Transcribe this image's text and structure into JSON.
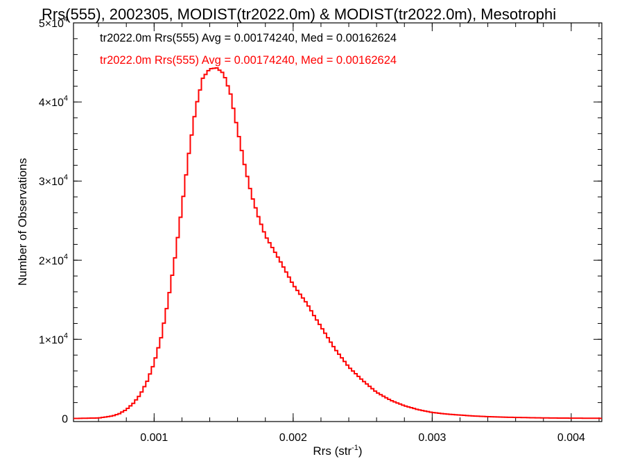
{
  "chart_data": {
    "type": "line",
    "title": "Rrs(555), 2002305, MODIST(tr2022.0m) & MODIST(tr2022.0m), Mesotrophi",
    "xlabel": {
      "base": "Rrs (str",
      "sup": "-1",
      "close": ")"
    },
    "ylabel": "Number of Observations",
    "xlim": [
      0.00042,
      0.00422
    ],
    "ylim": [
      -400,
      50000
    ],
    "grid": false,
    "step": true,
    "x_ticks": [
      {
        "value": 0.001,
        "label": "0.001"
      },
      {
        "value": 0.002,
        "label": "0.002"
      },
      {
        "value": 0.003,
        "label": "0.003"
      },
      {
        "value": 0.004,
        "label": "0.004"
      }
    ],
    "y_ticks": [
      {
        "value": 0,
        "label": "0"
      },
      {
        "value": 10000,
        "mant": "1×10",
        "exp": "4"
      },
      {
        "value": 20000,
        "mant": "2×10",
        "exp": "4"
      },
      {
        "value": 30000,
        "mant": "3×10",
        "exp": "4"
      },
      {
        "value": 40000,
        "mant": "4×10",
        "exp": "4"
      },
      {
        "value": 50000,
        "mant": "5×10",
        "exp": "4"
      }
    ],
    "annotations": [
      {
        "text": "tr2022.0m Rrs(555) Avg = 0.00174240, Med = 0.00162624",
        "color": "#000000"
      },
      {
        "text": "tr2022.0m Rrs(555) Avg = 0.00174240, Med = 0.00162624",
        "color": "#ff0000"
      }
    ],
    "series": [
      {
        "color": "#ff0000",
        "x": [
          0.00045,
          0.0006,
          0.0007,
          0.00075,
          0.0008,
          0.00085,
          0.0009,
          0.00095,
          0.001,
          0.00105,
          0.0011,
          0.00115,
          0.0012,
          0.00125,
          0.0013,
          0.00135,
          0.0014,
          0.00145,
          0.0015,
          0.00155,
          0.0016,
          0.00165,
          0.0017,
          0.00175,
          0.0018,
          0.00185,
          0.0019,
          0.00195,
          0.002,
          0.00205,
          0.0021,
          0.00215,
          0.0022,
          0.00225,
          0.0023,
          0.0024,
          0.0025,
          0.0026,
          0.0027,
          0.0028,
          0.0029,
          0.003,
          0.0031,
          0.0032,
          0.0033,
          0.0034,
          0.0035,
          0.0036,
          0.0037,
          0.0038,
          0.004,
          0.0042
        ],
        "y": [
          0,
          50,
          300,
          600,
          1100,
          1900,
          3000,
          4700,
          7000,
          10200,
          14800,
          20300,
          26700,
          33500,
          39300,
          43000,
          44200,
          44300,
          43600,
          41000,
          36500,
          32100,
          28300,
          25500,
          23100,
          21600,
          20100,
          18500,
          16900,
          15700,
          14500,
          13000,
          11600,
          10200,
          8800,
          6500,
          4800,
          3300,
          2300,
          1600,
          1100,
          750,
          550,
          420,
          300,
          220,
          160,
          120,
          90,
          60,
          30,
          10
        ]
      }
    ]
  }
}
